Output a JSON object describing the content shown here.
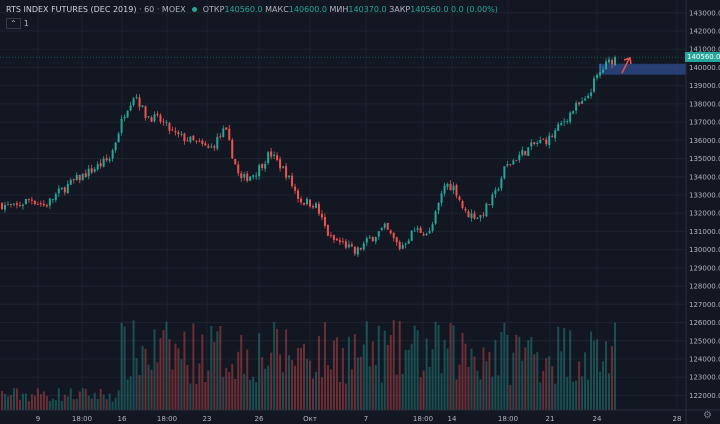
{
  "header": {
    "symbol": "RTS INDEX FUTURES (DEC 2019)",
    "interval": "60",
    "exchange": "MOEX",
    "open_label": "ОТКР",
    "open_value": "140560.0",
    "high_label": "МАКС",
    "high_value": "140600.0",
    "low_label": "МИН",
    "low_value": "140370.0",
    "close_label": "ЗАКР",
    "close_value": "140560.0",
    "change": "0.0 (0.00%)",
    "indicator_count": "1"
  },
  "colors": {
    "background": "#131722",
    "up": "#26a69a",
    "down": "#ef5350",
    "grid": "#1e222d",
    "zone": "#2f4c8f",
    "arrow": "#ef5350"
  },
  "current_price_label": "140560.0",
  "chart_data": {
    "type": "candlestick",
    "grid": true,
    "price_axis": {
      "ticks": [
        "143000.0",
        "142000.0",
        "141000.0",
        "140000.0",
        "139000.0",
        "138000.0",
        "137000.0",
        "136000.0",
        "135000.0",
        "134000.0",
        "133000.0",
        "132000.0",
        "131000.0",
        "130000.0",
        "129000.0",
        "128000.0",
        "127000.0",
        "126000.0",
        "125000.0",
        "124000.0",
        "123000.0",
        "122000.0"
      ],
      "ylim": [
        121200,
        143700
      ]
    },
    "time_axis": {
      "ticks": [
        "9",
        "18:00",
        "16",
        "18:00",
        "23",
        "26",
        "Окт",
        "7",
        "18:00",
        "14",
        "18:00",
        "21",
        "24",
        "28"
      ]
    },
    "close_anchors": [
      [
        0,
        132500
      ],
      [
        15,
        132300
      ],
      [
        30,
        132800
      ],
      [
        45,
        132400
      ],
      [
        60,
        133200
      ],
      [
        75,
        133800
      ],
      [
        90,
        134300
      ],
      [
        110,
        135000
      ],
      [
        125,
        137600
      ],
      [
        135,
        138600
      ],
      [
        145,
        137400
      ],
      [
        160,
        137100
      ],
      [
        175,
        136300
      ],
      [
        190,
        136000
      ],
      [
        210,
        135500
      ],
      [
        225,
        136600
      ],
      [
        240,
        133800
      ],
      [
        255,
        134200
      ],
      [
        270,
        135300
      ],
      [
        285,
        134300
      ],
      [
        300,
        132700
      ],
      [
        315,
        132500
      ],
      [
        330,
        130600
      ],
      [
        345,
        130300
      ],
      [
        355,
        129800
      ],
      [
        370,
        130600
      ],
      [
        385,
        131200
      ],
      [
        400,
        130100
      ],
      [
        415,
        131100
      ],
      [
        430,
        130900
      ],
      [
        445,
        133600
      ],
      [
        455,
        133400
      ],
      [
        465,
        132000
      ],
      [
        480,
        131800
      ],
      [
        495,
        133000
      ],
      [
        505,
        134500
      ],
      [
        520,
        135200
      ],
      [
        535,
        135800
      ],
      [
        550,
        136100
      ],
      [
        560,
        136800
      ],
      [
        575,
        137800
      ],
      [
        585,
        138100
      ],
      [
        595,
        139300
      ],
      [
        605,
        140100
      ],
      [
        615,
        140560
      ]
    ],
    "bar_count": 206,
    "volume": "shown",
    "resistance_zone": [
      139600,
      140200
    ],
    "last_price": 140560.0
  }
}
